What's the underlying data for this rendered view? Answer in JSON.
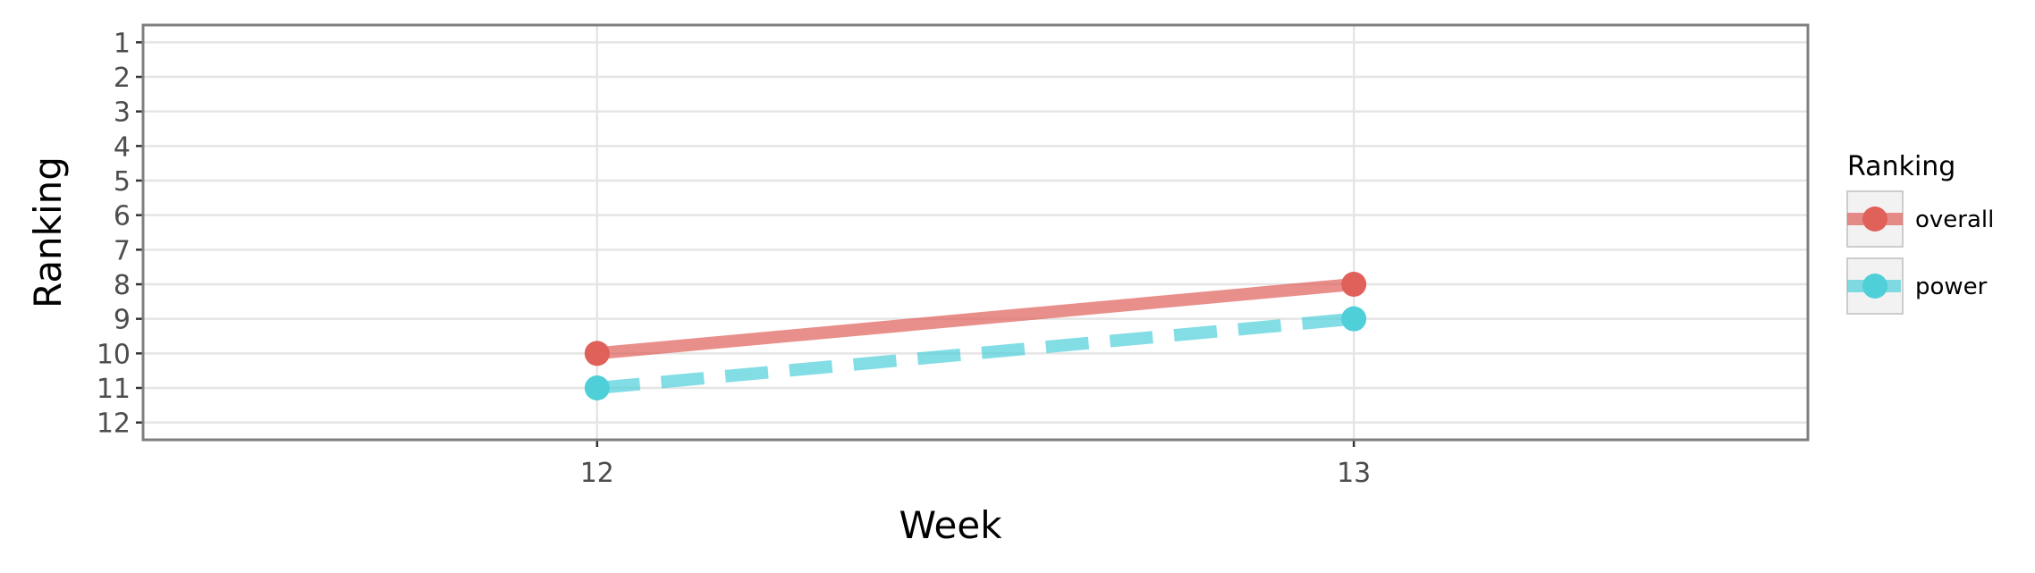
{
  "chart_data": {
    "type": "line",
    "xlabel": "Week",
    "ylabel": "Ranking",
    "x": [
      12,
      13
    ],
    "x_ticks": [
      "12",
      "13"
    ],
    "xlim": [
      11.4,
      13.6
    ],
    "ylim": [
      12.5,
      0.5
    ],
    "y_reversed": true,
    "y_ticks": [
      "1",
      "2",
      "3",
      "4",
      "5",
      "6",
      "7",
      "8",
      "9",
      "10",
      "11",
      "12"
    ],
    "grid": true,
    "legend": {
      "title": "Ranking",
      "placement": "right"
    },
    "series": [
      {
        "name": "overall",
        "values": [
          10,
          8
        ],
        "color": "#e0605a",
        "line_style": "solid"
      },
      {
        "name": "power",
        "values": [
          11,
          9
        ],
        "color": "#4fcfd8",
        "line_style": "dashed"
      }
    ]
  }
}
